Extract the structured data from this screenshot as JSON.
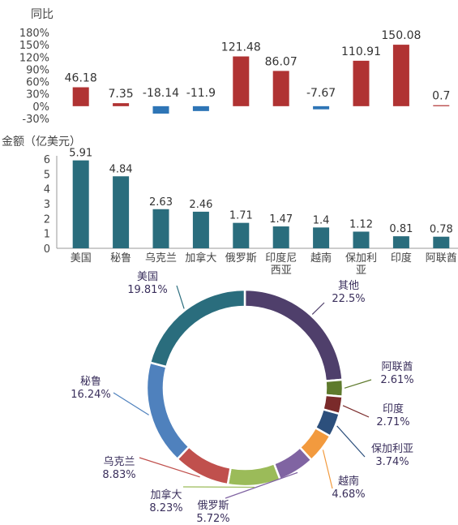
{
  "chart_data": [
    {
      "type": "bar",
      "ylabel": "同比",
      "ylim": [
        -30,
        180
      ],
      "yticks": [
        "-30%",
        "0%",
        "30%",
        "60%",
        "90%",
        "120%",
        "150%",
        "180%"
      ],
      "categories": [
        "美国",
        "秘鲁",
        "乌克兰",
        "加拿大",
        "俄罗斯",
        "印度尼西亚",
        "越南",
        "保加利亚",
        "印度",
        "阿联酋"
      ],
      "values": [
        46.18,
        7.35,
        -18.14,
        -11.9,
        121.48,
        86.07,
        -7.67,
        110.91,
        150.08,
        0.7
      ],
      "value_labels": [
        "46.18",
        "7.35",
        "-18.14",
        "-11.9",
        "121.48",
        "86.07",
        "-7.67",
        "110.91",
        "150.08",
        "0.7"
      ],
      "colors": {
        "positive": "#b03333",
        "negative": "#2e75b6"
      }
    },
    {
      "type": "bar",
      "ylabel": "金额（亿美元）",
      "ylim": [
        0,
        6
      ],
      "yticks": [
        "0",
        "1",
        "2",
        "3",
        "4",
        "5",
        "6"
      ],
      "categories": [
        "美国",
        "秘鲁",
        "乌克兰",
        "加拿大",
        "俄罗斯",
        "印度尼西亚",
        "越南",
        "保加利亚",
        "印度",
        "阿联酋"
      ],
      "category_label_lines": [
        [
          "美国"
        ],
        [
          "秘鲁"
        ],
        [
          "乌克兰"
        ],
        [
          "加拿大"
        ],
        [
          "俄罗斯"
        ],
        [
          "印度尼",
          "西亚"
        ],
        [
          "越南"
        ],
        [
          "保加利",
          "亚"
        ],
        [
          "印度"
        ],
        [
          "阿联酋"
        ]
      ],
      "values": [
        5.91,
        4.84,
        2.63,
        2.46,
        1.71,
        1.47,
        1.4,
        1.12,
        0.81,
        0.78
      ],
      "value_labels": [
        "5.91",
        "4.84",
        "2.63",
        "2.46",
        "1.71",
        "1.47",
        "1.4",
        "1.12",
        "0.81",
        "0.78"
      ],
      "colors": {
        "bar": "#2a6d7d"
      }
    },
    {
      "type": "pie",
      "style": "donut",
      "slices": [
        {
          "name": "其他",
          "value": 22.5,
          "label": "22.5%",
          "color": "#4f3f6b"
        },
        {
          "name": "阿联酋",
          "value": 2.61,
          "label": "2.61%",
          "color": "#5e7a2c"
        },
        {
          "name": "印度",
          "value": 2.71,
          "label": "2.71%",
          "color": "#7a2a2a"
        },
        {
          "name": "保加利亚",
          "value": 3.74,
          "label": "3.74%",
          "color": "#2c4f7c"
        },
        {
          "name": "越南",
          "value": 4.68,
          "label": "4.68%",
          "color": "#f29a3e"
        },
        {
          "name": "俄罗斯",
          "value": 5.72,
          "label": "5.72%",
          "color": "#8064a2"
        },
        {
          "name": "加拿大",
          "value": 8.23,
          "label": "8.23%",
          "color": "#9bbb59"
        },
        {
          "name": "乌克兰",
          "value": 8.83,
          "label": "8.83%",
          "color": "#c0504d"
        },
        {
          "name": "秘鲁",
          "value": 16.24,
          "label": "16.24%",
          "color": "#4f81bd"
        },
        {
          "name": "美国",
          "value": 19.81,
          "label": "19.81%",
          "color": "#2a6d7d"
        }
      ]
    }
  ]
}
